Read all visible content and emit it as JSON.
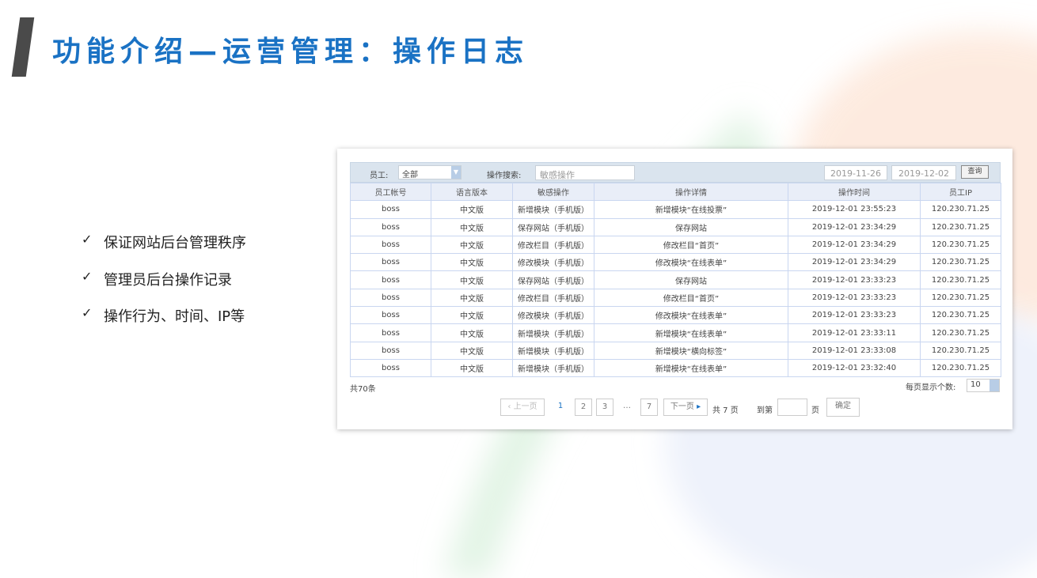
{
  "title": "功能介绍—运营管理：操作日志",
  "bullets": [
    "保证网站后台管理秩序",
    "管理员后台操作记录",
    "操作行为、时间、IP等"
  ],
  "check_icon": "✓",
  "toolbar": {
    "employee_label": "员工:",
    "employee_value": "全部",
    "search_label": "操作搜索:",
    "search_placeholder": "敏感操作",
    "date_from": "2019-11-26",
    "date_to": "2019-12-02",
    "query_label": "查询"
  },
  "table": {
    "headers": [
      "员工帐号",
      "语言版本",
      "敏感操作",
      "操作详情",
      "操作时间",
      "员工IP"
    ],
    "rows": [
      [
        "boss",
        "中文版",
        "新增模块（手机版）",
        "新增模块“在线投票”",
        "2019-12-01 23:55:23",
        "120.230.71.25"
      ],
      [
        "boss",
        "中文版",
        "保存网站（手机版）",
        "保存网站",
        "2019-12-01 23:34:29",
        "120.230.71.25"
      ],
      [
        "boss",
        "中文版",
        "修改栏目（手机版）",
        "修改栏目“首页”",
        "2019-12-01 23:34:29",
        "120.230.71.25"
      ],
      [
        "boss",
        "中文版",
        "修改模块（手机版）",
        "修改模块“在线表单”",
        "2019-12-01 23:34:29",
        "120.230.71.25"
      ],
      [
        "boss",
        "中文版",
        "保存网站（手机版）",
        "保存网站",
        "2019-12-01 23:33:23",
        "120.230.71.25"
      ],
      [
        "boss",
        "中文版",
        "修改栏目（手机版）",
        "修改栏目“首页”",
        "2019-12-01 23:33:23",
        "120.230.71.25"
      ],
      [
        "boss",
        "中文版",
        "修改模块（手机版）",
        "修改模块“在线表单”",
        "2019-12-01 23:33:23",
        "120.230.71.25"
      ],
      [
        "boss",
        "中文版",
        "新增模块（手机版）",
        "新增模块“在线表单”",
        "2019-12-01 23:33:11",
        "120.230.71.25"
      ],
      [
        "boss",
        "中文版",
        "新增模块（手机版）",
        "新增模块“横向标签”",
        "2019-12-01 23:33:08",
        "120.230.71.25"
      ],
      [
        "boss",
        "中文版",
        "新增模块（手机版）",
        "新增模块“在线表单”",
        "2019-12-01 23:32:40",
        "120.230.71.25"
      ]
    ]
  },
  "footer": {
    "total": "共70条",
    "per_page_label": "每页显示个数:",
    "per_page_value": "10"
  },
  "pagination": {
    "prev": "‹ 上一页",
    "pages": [
      "1",
      "2",
      "3",
      "…",
      "7"
    ],
    "next": "下一页",
    "total_pages": "共 7 页",
    "goto_label": "到第",
    "page_unit": "页",
    "confirm": "确定"
  },
  "colors": {
    "title": "#1a72c4",
    "accent": "#1a72c4"
  }
}
